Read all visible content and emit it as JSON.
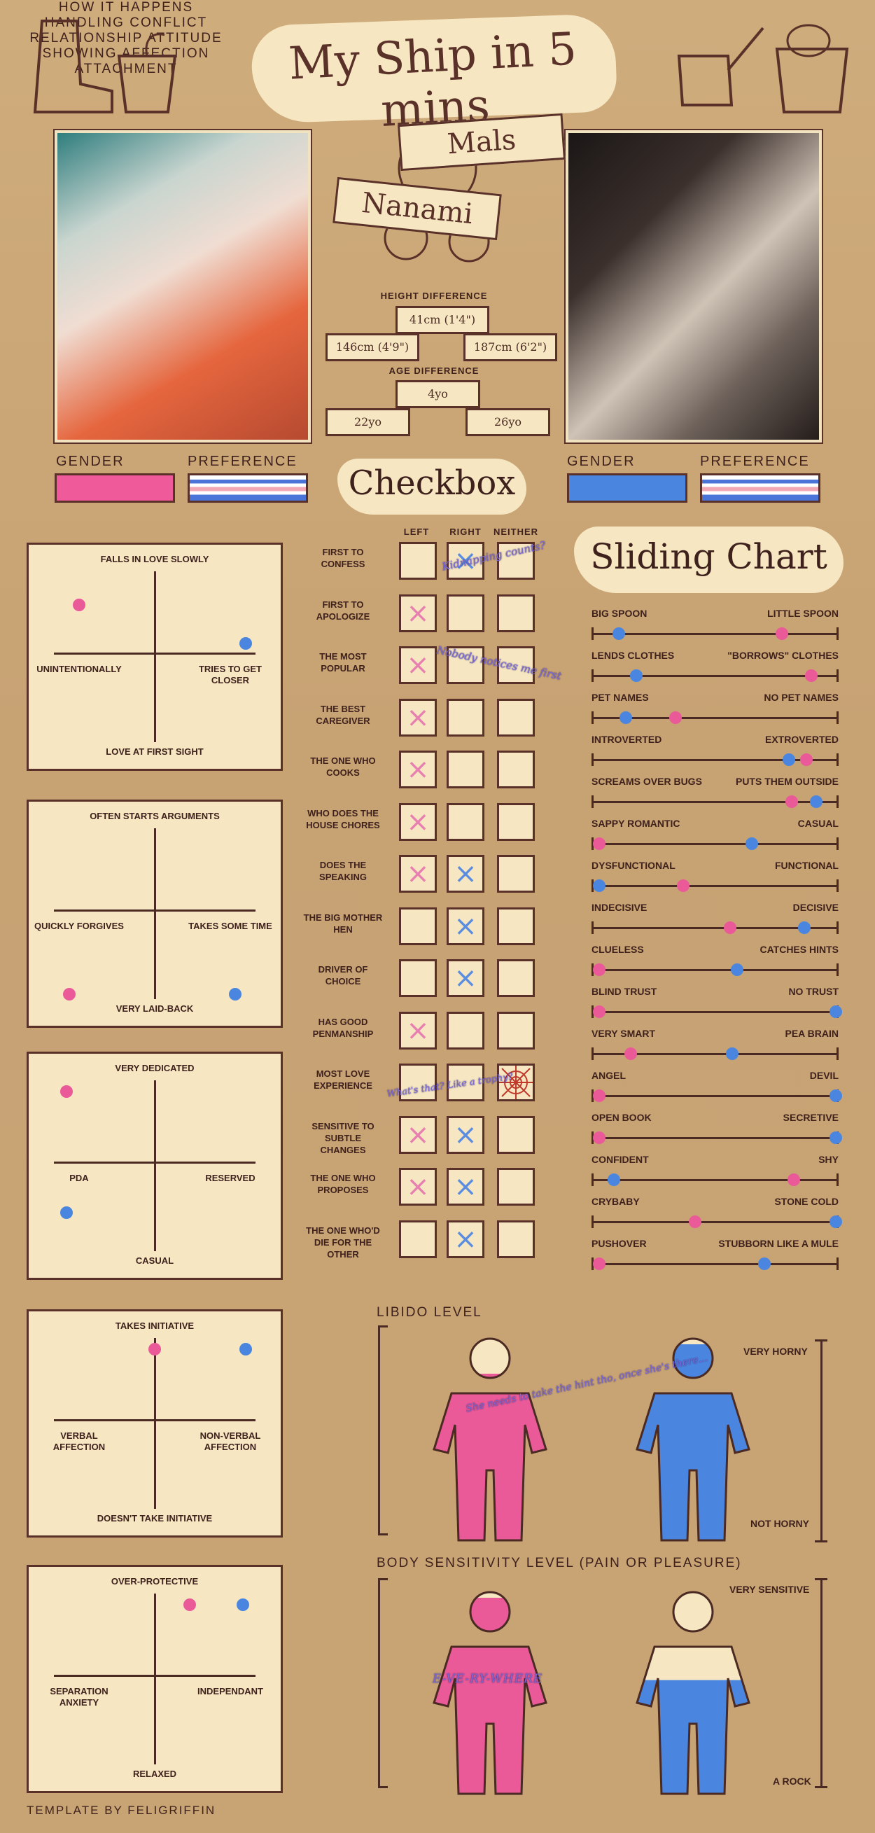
{
  "title": "My Ship in 5 mins",
  "names": {
    "first": "Mals",
    "second": "Nanami"
  },
  "height": {
    "label": "Height difference",
    "diff": "41cm (1'4\")",
    "left": "146cm (4'9\")",
    "right": "187cm (6'2\")"
  },
  "age": {
    "label": "Age difference",
    "diff": "4yo",
    "left": "22yo",
    "right": "26yo"
  },
  "left_person": {
    "gender_label": "Gender",
    "preference_label": "Preference",
    "gender_color": "#ef5a9a",
    "preference": "trans-flag"
  },
  "right_person": {
    "gender_label": "Gender",
    "preference_label": "Preference",
    "gender_color": "#4a86e0",
    "preference": "trans-flag"
  },
  "checkbox": {
    "title": "Checkbox",
    "headers": [
      "Left",
      "Right",
      "Neither"
    ],
    "rows": [
      {
        "label": "First to confess",
        "left": "",
        "right": "x",
        "neither": ""
      },
      {
        "label": "First to apologize",
        "left": "x",
        "right": "",
        "neither": ""
      },
      {
        "label": "The most popular",
        "left": "x",
        "right": "",
        "neither": ""
      },
      {
        "label": "The best caregiver",
        "left": "x",
        "right": "",
        "neither": ""
      },
      {
        "label": "The one who cooks",
        "left": "x",
        "right": "",
        "neither": ""
      },
      {
        "label": "Who does the house chores",
        "left": "x",
        "right": "",
        "neither": ""
      },
      {
        "label": "Does the speaking",
        "left": "x",
        "right": "x",
        "neither": ""
      },
      {
        "label": "The big mother hen",
        "left": "",
        "right": "x",
        "neither": ""
      },
      {
        "label": "Driver of choice",
        "left": "",
        "right": "x",
        "neither": ""
      },
      {
        "label": "Has good penmanship",
        "left": "x",
        "right": "",
        "neither": ""
      },
      {
        "label": "Most love experience",
        "left": "",
        "right": "",
        "neither": "web"
      },
      {
        "label": "Sensitive to subtle changes",
        "left": "x",
        "right": "x",
        "neither": ""
      },
      {
        "label": "The one who proposes",
        "left": "x",
        "right": "x",
        "neither": ""
      },
      {
        "label": "The one who'd die for the other",
        "left": "",
        "right": "x",
        "neither": ""
      }
    ],
    "annotations": [
      "Kidnapping counts?",
      "Nobody notices me first",
      "What's that? Like a trophy?"
    ]
  },
  "quadrants": [
    {
      "title": "How it happens",
      "top": "Falls in love slowly",
      "bottom": "Love at first sight",
      "left": "Unintentionally",
      "right": "Tries to get closer",
      "pink": [
        0.2,
        0.27
      ],
      "blue": [
        0.86,
        0.44
      ]
    },
    {
      "title": "Handling conflict",
      "top": "Often starts arguments",
      "bottom": "Very laid-back",
      "left": "Quickly forgives",
      "right": "Takes some time",
      "pink": [
        0.16,
        0.86
      ],
      "blue": [
        0.82,
        0.86
      ]
    },
    {
      "title": "Relationship attitude",
      "top": "Very dedicated",
      "bottom": "Casual",
      "left": "PDA",
      "right": "Reserved",
      "pink": [
        0.15,
        0.17
      ],
      "blue": [
        0.15,
        0.71
      ]
    },
    {
      "title": "Showing affection",
      "top": "Takes initiative",
      "bottom": "Doesn't take initiative",
      "left": "Verbal affection",
      "right": "Non-verbal affection",
      "pink": [
        0.5,
        0.17
      ],
      "blue": [
        0.86,
        0.17
      ]
    },
    {
      "title": "Attachment",
      "top": "Over-protective",
      "bottom": "Relaxed",
      "left": "Separation anxiety",
      "right": "Independant",
      "pink": [
        0.64,
        0.17
      ],
      "blue": [
        0.85,
        0.17
      ]
    }
  ],
  "sliding_chart": {
    "title": "Sliding Chart",
    "items": [
      {
        "left": "Big spoon",
        "right": "Little spoon",
        "pink": 0.77,
        "blue": 0.11
      },
      {
        "left": "Lends clothes",
        "right": "\"Borrows\" clothes",
        "pink": 0.89,
        "blue": 0.18
      },
      {
        "left": "Pet names",
        "right": "No pet names",
        "pink": 0.34,
        "blue": 0.14
      },
      {
        "left": "Introverted",
        "right": "Extroverted",
        "pink": 0.87,
        "blue": 0.8
      },
      {
        "left": "Screams over bugs",
        "right": "Puts them outside",
        "pink": 0.81,
        "blue": 0.91
      },
      {
        "left": "Sappy romantic",
        "right": "Casual",
        "pink": 0.03,
        "blue": 0.65
      },
      {
        "left": "Dysfunctional",
        "right": "Functional",
        "pink": 0.37,
        "blue": 0.03
      },
      {
        "left": "Indecisive",
        "right": "Decisive",
        "pink": 0.56,
        "blue": 0.86
      },
      {
        "left": "Clueless",
        "right": "Catches hints",
        "pink": 0.03,
        "blue": 0.59
      },
      {
        "left": "Blind trust",
        "right": "No trust",
        "pink": 0.03,
        "blue": 0.99
      },
      {
        "left": "Very smart",
        "right": "Pea brain",
        "pink": 0.16,
        "blue": 0.57
      },
      {
        "left": "Angel",
        "right": "Devil",
        "pink": 0.03,
        "blue": 0.99
      },
      {
        "left": "Open book",
        "right": "Secretive",
        "pink": 0.03,
        "blue": 0.99
      },
      {
        "left": "Confident",
        "right": "Shy",
        "pink": 0.82,
        "blue": 0.09
      },
      {
        "left": "Crybaby",
        "right": "Stone cold",
        "pink": 0.42,
        "blue": 0.99
      },
      {
        "left": "Pushover",
        "right": "Stubborn like a mule",
        "pink": 0.03,
        "blue": 0.7
      }
    ]
  },
  "libido": {
    "title": "Libido level",
    "top": "Very horny",
    "bottom": "Not horny",
    "pink_level": 0.85,
    "blue_level": 1.0,
    "annotation": "She needs to take the hint tho, once she's there..."
  },
  "sensitivity": {
    "title": "Body sensitivity level (pain or pleasure)",
    "top": "Very sensitive",
    "bottom": "A rock",
    "pink_level": 1.0,
    "blue_level": 0.58,
    "annotation": "E-VE-RY-WHERE"
  },
  "footer": "Template by Feligriffin",
  "colors": {
    "pink": "#ea5a98",
    "blue": "#4a86e0",
    "paper": "#f6e7c2",
    "ink": "#4a2a22"
  }
}
